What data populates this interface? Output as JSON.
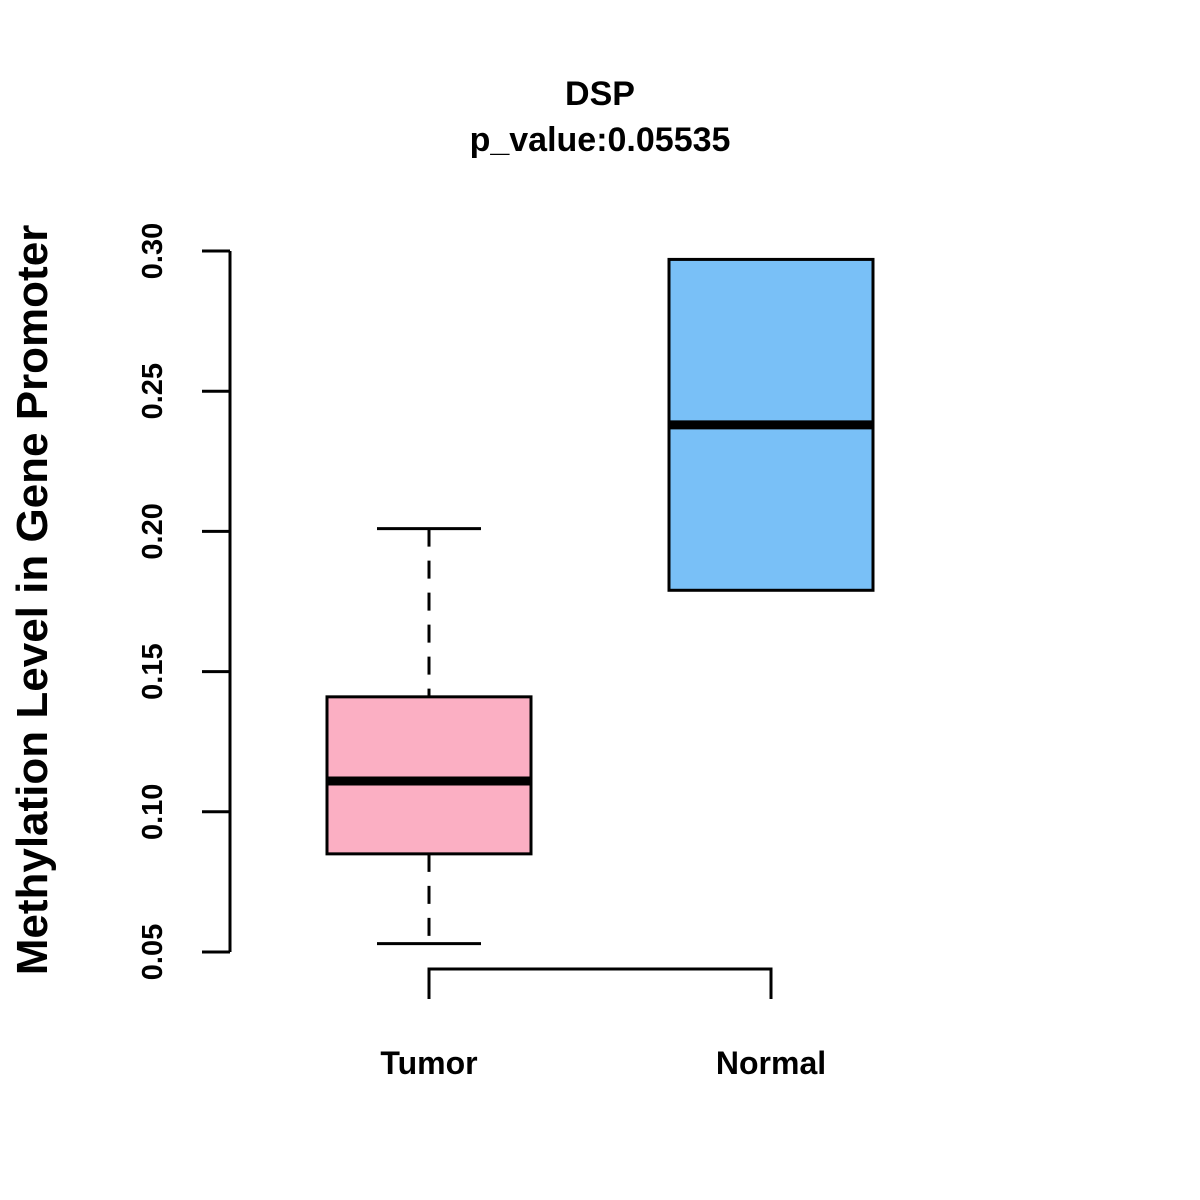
{
  "chart_data": {
    "type": "boxplot",
    "title": "DSP",
    "subtitle": "p_value:0.05535",
    "xlabel": "",
    "ylabel": "Methylation Level in Gene Promoter",
    "ylim": [
      0.05,
      0.3
    ],
    "yticks": [
      0.05,
      0.1,
      0.15,
      0.2,
      0.25,
      0.3
    ],
    "ytick_labels": [
      "0.05",
      "0.10",
      "0.15",
      "0.20",
      "0.25",
      "0.30"
    ],
    "categories": [
      "Tumor",
      "Normal"
    ],
    "boxes": [
      {
        "name": "Tumor",
        "whisker_low": 0.053,
        "q1": 0.085,
        "median": 0.111,
        "q3": 0.141,
        "whisker_high": 0.201,
        "color": "#fbafc3"
      },
      {
        "name": "Normal",
        "whisker_low": 0.179,
        "q1": 0.179,
        "median": 0.238,
        "q3": 0.297,
        "whisker_high": 0.297,
        "color": "#79c0f7"
      }
    ],
    "significance_bracket": {
      "from": "Tumor",
      "to": "Normal"
    },
    "grid": false,
    "legend": "none"
  }
}
